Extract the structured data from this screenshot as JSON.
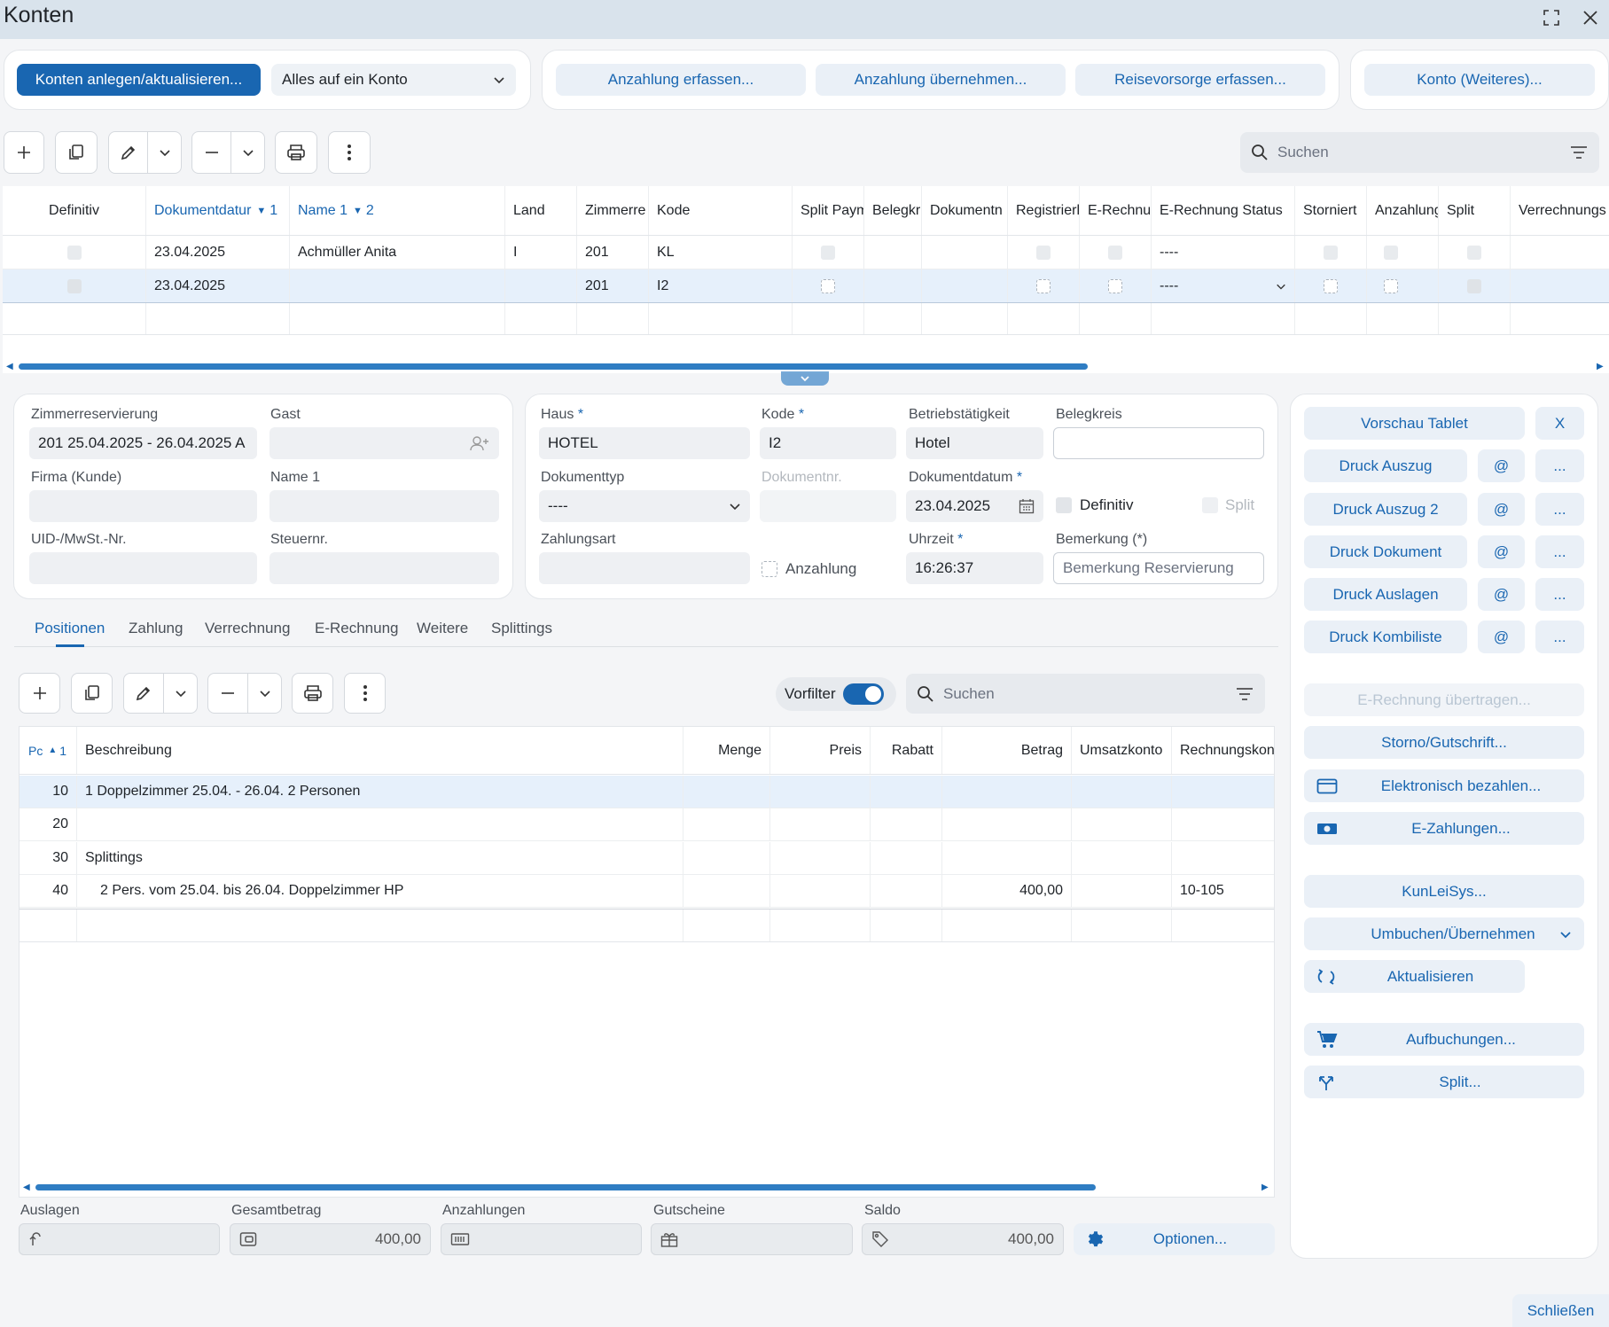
{
  "window": {
    "title": "Konten",
    "maximize_icon": "maximize-icon",
    "close_icon": "close-icon"
  },
  "top_actions": {
    "create_update": "Konten anlegen/aktualisieren...",
    "mode_select": "Alles auf ein Konto",
    "deposit_capture": "Anzahlung erfassen...",
    "deposit_take": "Anzahlung übernehmen...",
    "travel_insurance": "Reisevorsorge erfassen...",
    "account_more": "Konto (Weiteres)..."
  },
  "accounts_search": {
    "placeholder": "Suchen"
  },
  "accounts_table": {
    "columns": [
      "Definitiv",
      "Dokumentdatur",
      "Name 1",
      "Land",
      "Zimmerre",
      "Kode",
      "Split Paym",
      "Belegkr",
      "Dokumentn",
      "Registrierl",
      "E-Rechnu",
      "E-Rechnung Status",
      "Storniert",
      "Anzahlung",
      "Split",
      "Verrechnungs"
    ],
    "sort1": "1",
    "sort2": "2",
    "rows": [
      {
        "date": "23.04.2025",
        "name": "Achmüller Anita",
        "land": "I",
        "room": "201",
        "code": "KL",
        "status": "----"
      },
      {
        "date": "23.04.2025",
        "name": "",
        "land": "",
        "room": "201",
        "code": "I2",
        "status": "----"
      }
    ]
  },
  "header_form": {
    "room_reservation_label": "Zimmerreservierung",
    "room_reservation_value": "201  25.04.2025 - 26.04.2025  A",
    "guest_label": "Gast",
    "company_label": "Firma (Kunde)",
    "name1_label": "Name 1",
    "vat_label": "UID-/MwSt.-Nr.",
    "tax_label": "Steuernr.",
    "house_label": "Haus",
    "house_value": "HOTEL",
    "code_label": "Kode",
    "code_value": "I2",
    "activity_label": "Betriebstätigkeit",
    "activity_value": "Hotel",
    "receipt_circle_label": "Belegkreis",
    "doc_type_label": "Dokumenttyp",
    "doc_type_value": "----",
    "doc_no_label": "Dokumentnr.",
    "doc_date_label": "Dokumentdatum",
    "doc_date_value": "23.04.2025",
    "definitive_label": "Definitiv",
    "split_label": "Split",
    "payment_type_label": "Zahlungsart",
    "deposit_label": "Anzahlung",
    "time_label": "Uhrzeit",
    "time_value": "16:26:37",
    "remark_label": "Bemerkung (*)",
    "remark_placeholder": "Bemerkung Reservierung",
    "required_mark": "*"
  },
  "tabs": [
    "Positionen",
    "Zahlung",
    "Verrechnung",
    "E-Rechnung",
    "Weitere",
    "Splittings"
  ],
  "positions_toolbar": {
    "prefilter_label": "Vorfilter",
    "search_placeholder": "Suchen"
  },
  "positions_table": {
    "columns": [
      "Pc",
      "Beschreibung",
      "Menge",
      "Preis",
      "Rabatt",
      "Betrag",
      "Umsatzkonto",
      "Rechnungskon"
    ],
    "sort": "1",
    "rows": [
      {
        "pos": "10",
        "desc": "1 Doppelzimmer  25.04. - 26.04.  2 Personen",
        "amount": "",
        "account": ""
      },
      {
        "pos": "20",
        "desc": "",
        "amount": "",
        "account": ""
      },
      {
        "pos": "30",
        "desc": "Splittings",
        "amount": "",
        "account": ""
      },
      {
        "pos": "40",
        "desc": "2 Pers. vom 25.04. bis 26.04. Doppelzimmer HP",
        "amount": "400,00",
        "account": "10-105"
      }
    ]
  },
  "totals": {
    "expenses_label": "Auslagen",
    "expenses_value": "",
    "total_label": "Gesamtbetrag",
    "total_value": "400,00",
    "deposits_label": "Anzahlungen",
    "deposits_value": "",
    "vouchers_label": "Gutscheine",
    "vouchers_value": "",
    "balance_label": "Saldo",
    "balance_value": "400,00",
    "options_label": "Optionen..."
  },
  "side_panel": {
    "preview_tablet": "Vorschau Tablet",
    "x_label": "X",
    "at": "@",
    "dots": "...",
    "print_statement": "Druck Auszug",
    "print_statement2": "Druck Auszug 2",
    "print_document": "Druck Dokument",
    "print_expenses": "Druck Auslagen",
    "print_combi": "Druck Kombiliste",
    "einvoice_transfer": "E-Rechnung übertragen...",
    "storno": "Storno/Gutschrift...",
    "pay_electronic": "Elektronisch bezahlen...",
    "epayments": "E-Zahlungen...",
    "kunleisys": "KunLeiSys...",
    "rebook": "Umbuchen/Übernehmen",
    "refresh": "Aktualisieren",
    "postings": "Aufbuchungen...",
    "split": "Split..."
  },
  "footer": {
    "close": "Schließen"
  },
  "colors": {
    "accent": "#1966b1",
    "soft": "#eaf0f7",
    "selected_row": "#e6f0fb"
  }
}
